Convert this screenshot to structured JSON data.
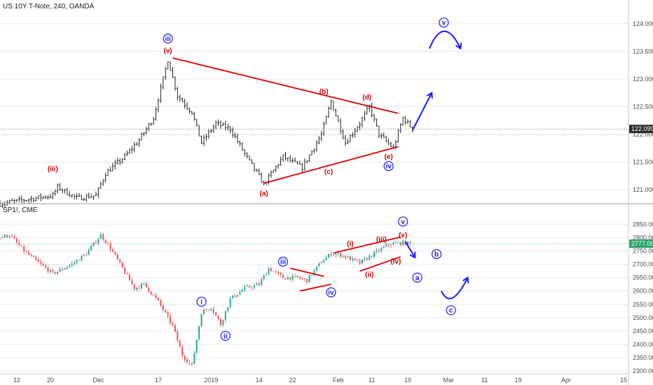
{
  "chart_data": [
    {
      "type": "candlestick",
      "title": "US 10Y T-Note, 240, OANDA",
      "ylim": [
        120.75,
        124.25
      ],
      "yticks": [
        "124.000",
        "123.500",
        "123.000",
        "122.500",
        "122.000",
        "121.500",
        "121.000"
      ],
      "last_price": "122.099",
      "anchors": [
        [
          0,
          120.75
        ],
        [
          22,
          120.9
        ],
        [
          24,
          121.05
        ],
        [
          32,
          120.85
        ],
        [
          40,
          120.9
        ],
        [
          44,
          121.3
        ],
        [
          52,
          121.6
        ],
        [
          58,
          121.9
        ],
        [
          64,
          122.3
        ],
        [
          70,
          123.35
        ],
        [
          74,
          122.7
        ],
        [
          80,
          122.4
        ],
        [
          84,
          121.85
        ],
        [
          90,
          122.2
        ],
        [
          96,
          122.1
        ],
        [
          102,
          121.65
        ],
        [
          110,
          121.1
        ],
        [
          118,
          121.6
        ],
        [
          126,
          121.4
        ],
        [
          134,
          122.0
        ],
        [
          138,
          122.6
        ],
        [
          144,
          121.85
        ],
        [
          150,
          122.2
        ],
        [
          154,
          122.5
        ],
        [
          158,
          122.0
        ],
        [
          164,
          121.75
        ],
        [
          168,
          122.3
        ],
        [
          172,
          122.1
        ]
      ],
      "wave_labels": [
        {
          "text": "iii",
          "x": 70,
          "y": 123.73,
          "color": "#1a1aff",
          "circled": true
        },
        {
          "text": "(v)",
          "x": 70,
          "y": 123.52,
          "color": "#cc0000",
          "circled": false
        },
        {
          "text": "(iii)",
          "x": 22,
          "y": 121.38,
          "color": "#cc0000",
          "circled": false
        },
        {
          "text": "(b)",
          "x": 135,
          "y": 122.78,
          "color": "#cc0000",
          "circled": false
        },
        {
          "text": "(d)",
          "x": 153,
          "y": 122.68,
          "color": "#cc0000",
          "circled": false
        },
        {
          "text": "(a)",
          "x": 110,
          "y": 120.94,
          "color": "#cc0000",
          "circled": false
        },
        {
          "text": "(c)",
          "x": 137,
          "y": 121.33,
          "color": "#cc0000",
          "circled": false
        },
        {
          "text": "(e)",
          "x": 162,
          "y": 121.6,
          "color": "#cc0000",
          "circled": false
        },
        {
          "text": "iv",
          "x": 162,
          "y": 121.43,
          "color": "#1a1aff",
          "circled": true
        },
        {
          "text": "v",
          "x": 185,
          "y": 124.02,
          "color": "#1a1aff",
          "circled": true
        }
      ],
      "trendlines": [
        {
          "from": [
            72,
            123.38
          ],
          "to": [
            166,
            122.38
          ],
          "color": "#e00000"
        },
        {
          "from": [
            110,
            121.12
          ],
          "to": [
            166,
            121.78
          ],
          "color": "#e00000"
        }
      ],
      "projections": [
        {
          "path": [
            [
              172,
              122.08
            ],
            [
              180,
              122.75
            ]
          ],
          "color": "#1a1aff",
          "arrow": true
        },
        {
          "path": [
            [
              179,
              123.55
            ],
            [
              185,
              123.88
            ],
            [
              192,
              123.55
            ]
          ],
          "color": "#1a1aff",
          "arrow": true
        }
      ]
    },
    {
      "type": "candlestick",
      "title": "SP1!, CME",
      "ylim": [
        2290,
        2890
      ],
      "yticks": [
        "2850.00",
        "2800.00",
        "2750.00",
        "2700.00",
        "2650.00",
        "2600.00",
        "2550.00",
        "2500.00",
        "2450.00",
        "2400.00",
        "2350.00",
        "2300.00"
      ],
      "last_price": "2777.00",
      "anchors": [
        [
          0,
          2800
        ],
        [
          4,
          2810
        ],
        [
          10,
          2750
        ],
        [
          14,
          2720
        ],
        [
          22,
          2665
        ],
        [
          30,
          2700
        ],
        [
          36,
          2740
        ],
        [
          42,
          2810
        ],
        [
          46,
          2760
        ],
        [
          50,
          2700
        ],
        [
          56,
          2610
        ],
        [
          60,
          2625
        ],
        [
          66,
          2560
        ],
        [
          72,
          2470
        ],
        [
          76,
          2360
        ],
        [
          80,
          2320
        ],
        [
          84,
          2520
        ],
        [
          88,
          2540
        ],
        [
          92,
          2475
        ],
        [
          96,
          2570
        ],
        [
          102,
          2610
        ],
        [
          108,
          2625
        ],
        [
          112,
          2685
        ],
        [
          118,
          2650
        ],
        [
          124,
          2650
        ],
        [
          128,
          2640
        ],
        [
          134,
          2710
        ],
        [
          138,
          2740
        ],
        [
          142,
          2735
        ],
        [
          146,
          2720
        ],
        [
          150,
          2705
        ],
        [
          156,
          2740
        ],
        [
          162,
          2775
        ],
        [
          168,
          2780
        ],
        [
          171,
          2777
        ]
      ],
      "wave_labels": [
        {
          "text": "v",
          "x": 168,
          "y": 2860,
          "color": "#1a1aff",
          "circled": true
        },
        {
          "text": "(v)",
          "x": 168,
          "y": 2810,
          "color": "#cc0000",
          "circled": false
        },
        {
          "text": "(iii)",
          "x": 159,
          "y": 2795,
          "color": "#cc0000",
          "circled": false
        },
        {
          "text": "(i)",
          "x": 146,
          "y": 2777,
          "color": "#cc0000",
          "circled": false
        },
        {
          "text": "(ii)",
          "x": 154,
          "y": 2662,
          "color": "#cc0000",
          "circled": false
        },
        {
          "text": "(iv)",
          "x": 165,
          "y": 2712,
          "color": "#cc0000",
          "circled": false
        },
        {
          "text": "iii",
          "x": 118,
          "y": 2710,
          "color": "#1a1aff",
          "circled": true
        },
        {
          "text": "iv",
          "x": 138,
          "y": 2595,
          "color": "#1a1aff",
          "circled": true
        },
        {
          "text": "i",
          "x": 84,
          "y": 2560,
          "color": "#1a1aff",
          "circled": true
        },
        {
          "text": "ii",
          "x": 94,
          "y": 2432,
          "color": "#1a1aff",
          "circled": true
        },
        {
          "text": "b",
          "x": 182,
          "y": 2738,
          "color": "#1a1aff",
          "circled": true
        },
        {
          "text": "a",
          "x": 174,
          "y": 2650,
          "color": "#1a1aff",
          "circled": true
        },
        {
          "text": "c",
          "x": 188,
          "y": 2528,
          "color": "#1a1aff",
          "circled": true
        }
      ],
      "trendlines": [
        {
          "from": [
            121,
            2685
          ],
          "to": [
            135,
            2655
          ],
          "color": "#e00000"
        },
        {
          "from": [
            125,
            2600
          ],
          "to": [
            138,
            2625
          ],
          "color": "#e00000"
        },
        {
          "from": [
            139,
            2742
          ],
          "to": [
            167,
            2802
          ],
          "color": "#e00000"
        },
        {
          "from": [
            150,
            2674
          ],
          "to": [
            167,
            2728
          ],
          "color": "#e00000"
        }
      ],
      "projections": [
        {
          "path": [
            [
              169,
              2785
            ],
            [
              173,
              2725
            ]
          ],
          "color": "#1a1aff",
          "arrow": true
        },
        {
          "path": [
            [
              184,
              2600
            ],
            [
              188,
              2560
            ],
            [
              195,
              2650
            ]
          ],
          "color": "#1a1aff",
          "arrow": true
        }
      ]
    }
  ],
  "x_axis": {
    "ticks": [
      {
        "label": "12",
        "x": 7
      },
      {
        "label": "20",
        "x": 21
      },
      {
        "label": "Dec",
        "x": 41
      },
      {
        "label": "17",
        "x": 66
      },
      {
        "label": "2019",
        "x": 88
      },
      {
        "label": "14",
        "x": 108
      },
      {
        "label": "22",
        "x": 122
      },
      {
        "label": "Feb",
        "x": 141
      },
      {
        "label": "11",
        "x": 155
      },
      {
        "label": "19",
        "x": 170
      },
      {
        "label": "Mar",
        "x": 187
      },
      {
        "label": "11",
        "x": 202
      },
      {
        "label": "19",
        "x": 216
      },
      {
        "label": "Apr",
        "x": 236
      },
      {
        "label": "15",
        "x": 260
      }
    ]
  },
  "colors": {
    "up": "#26a69a",
    "down": "#ef5350",
    "bar": "#222222",
    "wave_red": "#cc0000",
    "wave_blue": "#1a1aff",
    "price_tag": "#2c2c2c",
    "sp_price_tag": "#2ea36a",
    "grid": "#e6e6e6"
  }
}
